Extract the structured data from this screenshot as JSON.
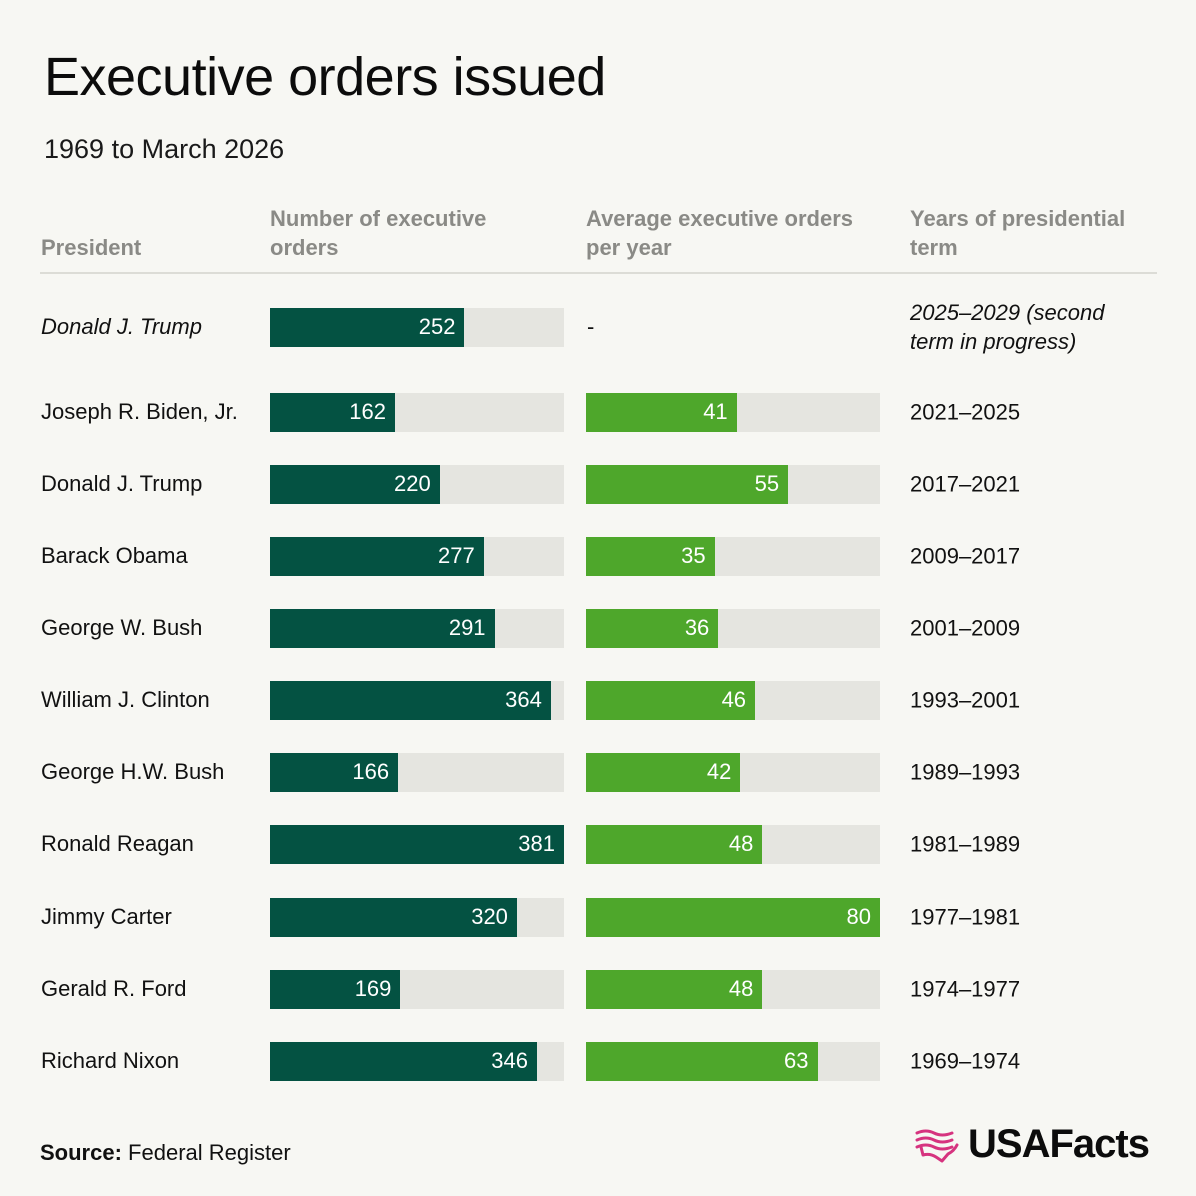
{
  "title": "Executive orders issued",
  "subtitle": "1969 to March 2026",
  "headers": {
    "president": "President",
    "count": "Number of executive orders",
    "avg": "Average executive orders per year",
    "years": "Years of presidential term"
  },
  "source_label": "Source:",
  "source_text": "Federal Register",
  "logo_text": "USAFacts",
  "colors": {
    "count_bar": "#045242",
    "avg_bar": "#4ea72b",
    "track": "#e5e5e0",
    "logo_flag": "#d6337f"
  },
  "chart_data": {
    "type": "bar",
    "orientation": "horizontal",
    "count_max": 381,
    "avg_max": 80,
    "rows": [
      {
        "president": "Donald J. Trump",
        "count": 252,
        "avg": null,
        "avg_label": "-",
        "years": "2025–2029 (second term in progress)",
        "italic": true
      },
      {
        "president": "Joseph R. Biden, Jr.",
        "count": 162,
        "avg": 41,
        "years": "2021–2025"
      },
      {
        "president": "Donald J. Trump",
        "count": 220,
        "avg": 55,
        "years": "2017–2021"
      },
      {
        "president": "Barack Obama",
        "count": 277,
        "avg": 35,
        "years": "2009–2017"
      },
      {
        "president": "George W. Bush",
        "count": 291,
        "avg": 36,
        "years": "2001–2009"
      },
      {
        "president": "William J. Clinton",
        "count": 364,
        "avg": 46,
        "years": "1993–2001"
      },
      {
        "president": "George H.W. Bush",
        "count": 166,
        "avg": 42,
        "years": "1989–1993"
      },
      {
        "president": "Ronald Reagan",
        "count": 381,
        "avg": 48,
        "years": "1981–1989"
      },
      {
        "president": "Jimmy Carter",
        "count": 320,
        "avg": 80,
        "years": "1977–1981"
      },
      {
        "president": "Gerald R. Ford",
        "count": 169,
        "avg": 48,
        "years": "1974–1977"
      },
      {
        "president": "Richard Nixon",
        "count": 346,
        "avg": 63,
        "years": "1969–1974"
      }
    ]
  }
}
